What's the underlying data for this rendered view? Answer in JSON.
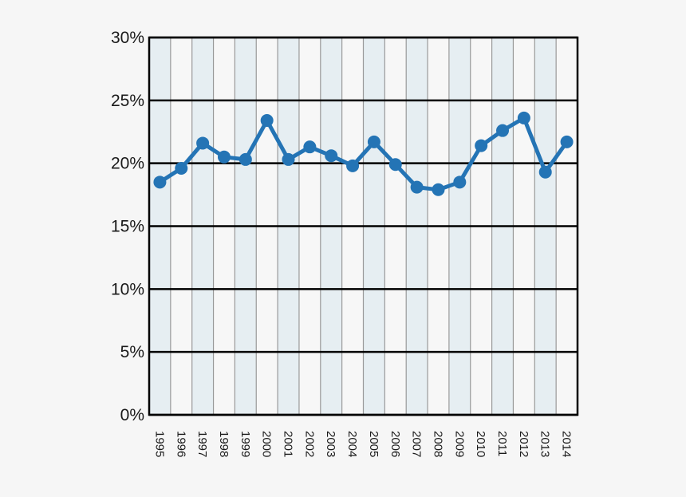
{
  "chart_data": {
    "type": "line",
    "title": "",
    "xlabel": "",
    "ylabel": "",
    "categories": [
      "1995",
      "1996",
      "1997",
      "1998",
      "1999",
      "2000",
      "2001",
      "2002",
      "2003",
      "2004",
      "2005",
      "2006",
      "2007",
      "2008",
      "2009",
      "2010",
      "2011",
      "2012",
      "2013",
      "2014"
    ],
    "series": [
      {
        "values": [
          18.5,
          19.6,
          21.6,
          20.5,
          20.3,
          23.4,
          20.3,
          21.3,
          20.6,
          19.8,
          21.7,
          19.9,
          18.1,
          17.9,
          18.5,
          21.4,
          22.6,
          23.6,
          19.3,
          21.7
        ]
      }
    ],
    "ylim": [
      0,
      30
    ],
    "yticks": [
      0,
      5,
      10,
      15,
      20,
      25,
      30
    ],
    "ytick_labels": [
      "0%",
      "5%",
      "10%",
      "15%",
      "20%",
      "25%",
      "30%"
    ],
    "grid": true,
    "legend": "none",
    "colors": {
      "line": "#2474b5",
      "band_shaded": "#e6eef2",
      "band_plain": "#f7f7f7",
      "gridline": "#000000",
      "separator": "#999999",
      "background": "#f6f6f6"
    }
  }
}
